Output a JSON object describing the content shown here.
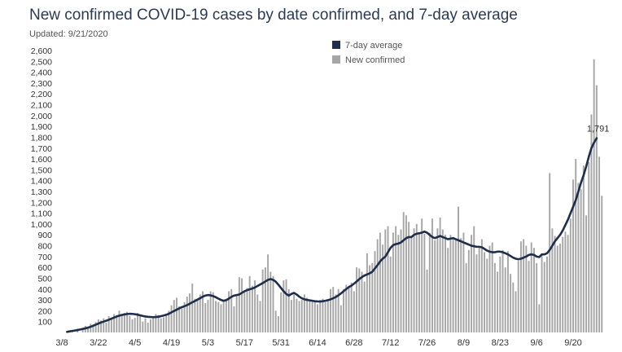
{
  "chart_data": {
    "type": "bar",
    "title": "New confirmed COVID-19 cases by date confirmed, and 7-day average",
    "subtitle": "Updated: 9/21/2020",
    "start_date": "3/10",
    "ylim": [
      0,
      2600
    ],
    "y_ticks": [
      100,
      200,
      300,
      400,
      500,
      600,
      700,
      800,
      900,
      1000,
      1100,
      1200,
      1300,
      1400,
      1500,
      1600,
      1700,
      1800,
      1900,
      2000,
      2100,
      2200,
      2300,
      2400,
      2500,
      2600
    ],
    "x_tick_labels": [
      "3/8",
      "3/22",
      "4/5",
      "4/19",
      "5/3",
      "5/17",
      "5/31",
      "6/14",
      "6/28",
      "7/12",
      "7/26",
      "8/9",
      "8/23",
      "9/6",
      "9/20"
    ],
    "grid": false,
    "legend_position": "top-center",
    "series": [
      {
        "name": "7-day average",
        "type": "line",
        "color": "#1f2e4d",
        "values": [
          5,
          10,
          14,
          18,
          22,
          27,
          32,
          38,
          44,
          52,
          62,
          72,
          82,
          92,
          100,
          108,
          117,
          127,
          137,
          147,
          155,
          161,
          166,
          170,
          172,
          171,
          168,
          164,
          158,
          152,
          147,
          144,
          142,
          141,
          142,
          145,
          150,
          156,
          163,
          172,
          185,
          198,
          210,
          222,
          233,
          242,
          252,
          265,
          278,
          290,
          303,
          316,
          330,
          340,
          345,
          342,
          335,
          325,
          312,
          300,
          292,
          298,
          312,
          328,
          340,
          345,
          350,
          365,
          380,
          390,
          398,
          405,
          415,
          428,
          442,
          455,
          470,
          485,
          492,
          485,
          468,
          440,
          410,
          380,
          355,
          340,
          355,
          365,
          350,
          330,
          315,
          305,
          300,
          296,
          292,
          288,
          286,
          285,
          288,
          292,
          298,
          305,
          315,
          327,
          342,
          360,
          380,
          400,
          418,
          432,
          450,
          470,
          492,
          510,
          525,
          535,
          545,
          560,
          590,
          620,
          655,
          680,
          700,
          740,
          780,
          805,
          815,
          820,
          830,
          850,
          870,
          880,
          880,
          900,
          910,
          915,
          920,
          930,
          920,
          900,
          880,
          870,
          880,
          890,
          880,
          870,
          860,
          865,
          870,
          860,
          850,
          840,
          830,
          820,
          810,
          800,
          795,
          790,
          790,
          785,
          770,
          755,
          745,
          740,
          740,
          745,
          745,
          740,
          730,
          720,
          705,
          690,
          680,
          675,
          680,
          690,
          700,
          715,
          720,
          715,
          700,
          695,
          720,
          720,
          730,
          760,
          800,
          840,
          870,
          900,
          940,
          990,
          1040,
          1100,
          1160,
          1220,
          1300,
          1380,
          1450,
          1530,
          1620,
          1700,
          1750,
          1791
        ],
        "last_label": "1,791"
      },
      {
        "name": "New confirmed",
        "type": "bar",
        "color": "#a6a6a6",
        "values": [
          12,
          0,
          20,
          0,
          35,
          0,
          45,
          60,
          50,
          80,
          60,
          95,
          120,
          110,
          130,
          90,
          150,
          135,
          170,
          160,
          200,
          165,
          180,
          190,
          150,
          120,
          135,
          180,
          160,
          100,
          130,
          90,
          120,
          150,
          170,
          160,
          130,
          140,
          160,
          200,
          250,
          300,
          320,
          240,
          220,
          280,
          330,
          360,
          450,
          310,
          300,
          350,
          380,
          270,
          300,
          380,
          370,
          290,
          280,
          260,
          300,
          310,
          380,
          400,
          240,
          350,
          510,
          500,
          380,
          410,
          520,
          430,
          480,
          350,
          290,
          580,
          600,
          720,
          560,
          520,
          200,
          150,
          370,
          480,
          490,
          400,
          300,
          350,
          310,
          290,
          300,
          350,
          320,
          300,
          300,
          280,
          260,
          300,
          310,
          280,
          300,
          400,
          420,
          350,
          400,
          250,
          400,
          440,
          430,
          460,
          380,
          600,
          590,
          560,
          470,
          730,
          620,
          640,
          750,
          860,
          920,
          810,
          950,
          980,
          700,
          920,
          980,
          900,
          950,
          1110,
          1080,
          1020,
          880,
          960,
          1000,
          920,
          1050,
          910,
          580,
          920,
          1050,
          850,
          960,
          1060,
          950,
          900,
          780,
          900,
          880,
          860,
          1160,
          870,
          920,
          640,
          760,
          900,
          980,
          720,
          780,
          860,
          740,
          680,
          800,
          830,
          640,
          560,
          700,
          760,
          600,
          750,
          540,
          460,
          380,
          660,
          840,
          860,
          800,
          660,
          830,
          780,
          640,
          260,
          720,
          650,
          700,
          1470,
          960,
          890,
          800,
          820,
          880,
          930,
          900,
          1050,
          1410,
          1600,
          1380,
          1320,
          1540,
          1080,
          1570,
          2010,
          2520,
          2280,
          1620,
          1260
        ]
      }
    ]
  }
}
